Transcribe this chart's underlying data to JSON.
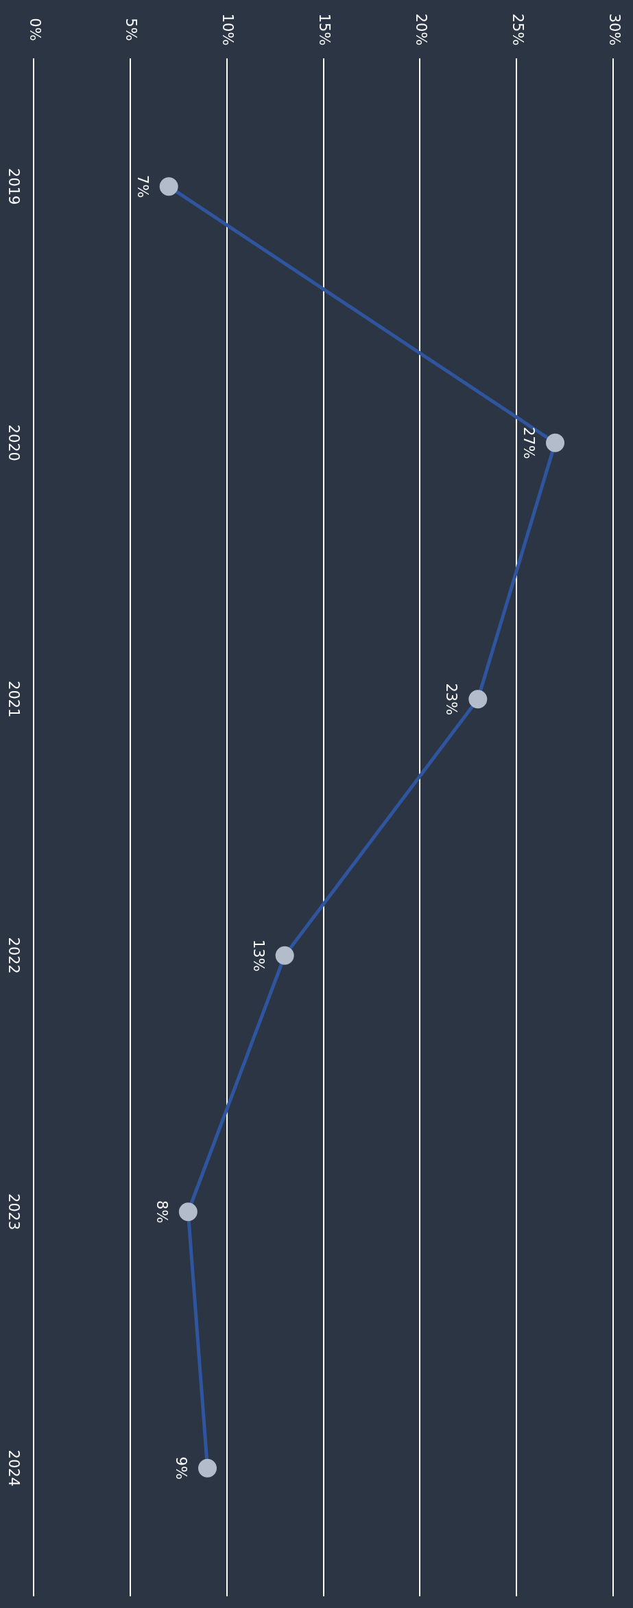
{
  "chart_data": {
    "type": "line",
    "orientation": "horizontal",
    "categories": [
      "2019",
      "2020",
      "2021",
      "2022",
      "2023",
      "2024"
    ],
    "series": [
      {
        "color": "#2f559e",
        "values": [
          7,
          27,
          23,
          13,
          8,
          9
        ],
        "value_labels": [
          "7%",
          "27%",
          "23%",
          "13%",
          "8%",
          "9%"
        ]
      }
    ],
    "xlim": [
      0,
      30
    ],
    "xticks": [
      {
        "value": 0,
        "label": "0%"
      },
      {
        "value": 5,
        "label": "5%"
      },
      {
        "value": 10,
        "label": "10%"
      },
      {
        "value": 15,
        "label": "15%"
      },
      {
        "value": 20,
        "label": "20%"
      },
      {
        "value": 25,
        "label": "25%"
      },
      {
        "value": 30,
        "label": "30%"
      }
    ],
    "grid": "x",
    "marker": "circle"
  }
}
